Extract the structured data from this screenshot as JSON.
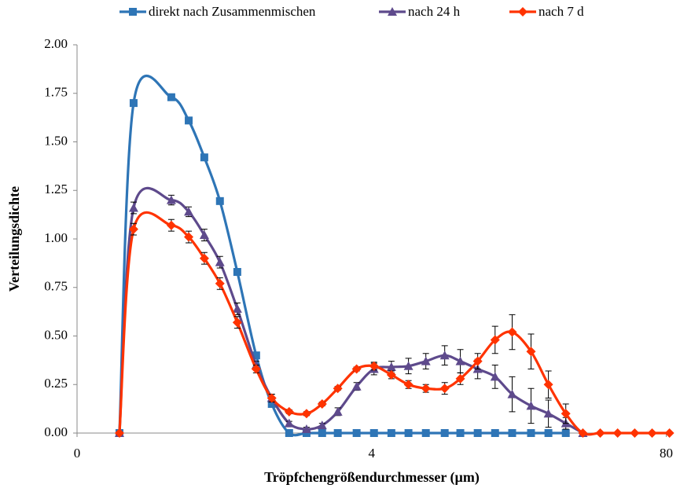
{
  "chart_data": {
    "type": "line",
    "x_label": "Tröpfchengrößendurchmesser (µm)",
    "y_label": "Verteilungsdichte",
    "x": [
      0.144,
      0.192,
      0.32,
      0.379,
      0.432,
      0.485,
      0.544,
      0.608,
      0.661,
      0.72,
      0.779,
      0.832,
      0.885,
      0.949,
      1.008,
      1.067,
      1.125,
      1.184,
      1.248,
      1.301,
      1.36,
      1.419,
      1.477,
      1.541,
      1.6,
      1.659,
      1.717,
      1.776,
      1.835,
      1.893,
      1.952,
      2.011
    ],
    "xlim": [
      0,
      2.02
    ],
    "xticks": [
      {
        "value": 0,
        "label": "0"
      },
      {
        "value": 1,
        "label": "4"
      },
      {
        "value": 2,
        "label": "80"
      }
    ],
    "ylim": [
      0,
      2
    ],
    "yticks": [
      {
        "value": 0,
        "label": "0.00"
      },
      {
        "value": 0.25,
        "label": "0.25"
      },
      {
        "value": 0.5,
        "label": "0.50"
      },
      {
        "value": 0.75,
        "label": "0.75"
      },
      {
        "value": 1,
        "label": "1.00"
      },
      {
        "value": 1.25,
        "label": "1.25"
      },
      {
        "value": 1.5,
        "label": "1.50"
      },
      {
        "value": 1.75,
        "label": "1.75"
      },
      {
        "value": 2,
        "label": "2.00"
      }
    ],
    "legend": "top",
    "series": [
      {
        "name": "direkt nach Zusammenmischen",
        "color": "#2e75b6",
        "marker": "square",
        "values": [
          0,
          1.7,
          1.73,
          1.61,
          1.42,
          1.195,
          0.83,
          0.4,
          0.15,
          0,
          0,
          0,
          0,
          0,
          0,
          0,
          0,
          0,
          0,
          0,
          0,
          0,
          0,
          0,
          0,
          0,
          null,
          null,
          null,
          null,
          null,
          null
        ]
      },
      {
        "name": "nach 24 h",
        "color": "#5e4a8c",
        "marker": "triangle",
        "values": [
          0,
          1.16,
          1.2,
          1.14,
          1.02,
          0.88,
          0.64,
          0.35,
          0.18,
          0.05,
          0.02,
          0.04,
          0.11,
          0.24,
          0.33,
          0.34,
          0.345,
          0.37,
          0.4,
          0.37,
          0.33,
          0.29,
          0.2,
          0.14,
          0.1,
          0.05,
          0,
          null,
          null,
          null,
          null,
          null
        ],
        "errors": [
          0,
          0.03,
          0.025,
          0.025,
          0.03,
          0.03,
          0.03,
          0.02,
          0.02,
          0.01,
          0.01,
          0.01,
          0.02,
          0.02,
          0.03,
          0.03,
          0.04,
          0.04,
          0.05,
          0.06,
          0.05,
          0.06,
          0.09,
          0.09,
          0.07,
          0.03,
          0,
          null,
          null,
          null,
          null,
          null
        ]
      },
      {
        "name": "nach 7 d",
        "color": "#ff3300",
        "marker": "diamond",
        "values": [
          0,
          1.05,
          1.07,
          1.01,
          0.9,
          0.77,
          0.57,
          0.33,
          0.18,
          0.11,
          0.1,
          0.15,
          0.23,
          0.33,
          0.345,
          0.3,
          0.25,
          0.23,
          0.23,
          0.28,
          0.37,
          0.48,
          0.52,
          0.42,
          0.25,
          0.1,
          0,
          0,
          0,
          0,
          0,
          0
        ],
        "errors": [
          0,
          0.03,
          0.03,
          0.03,
          0.03,
          0.03,
          0.03,
          0.02,
          0.02,
          0.01,
          0.01,
          0.01,
          0.01,
          0.01,
          0.02,
          0.02,
          0.02,
          0.02,
          0.03,
          0.03,
          0.04,
          0.07,
          0.09,
          0.09,
          0.07,
          0.05,
          0,
          0,
          0,
          0,
          0,
          0
        ]
      }
    ]
  }
}
